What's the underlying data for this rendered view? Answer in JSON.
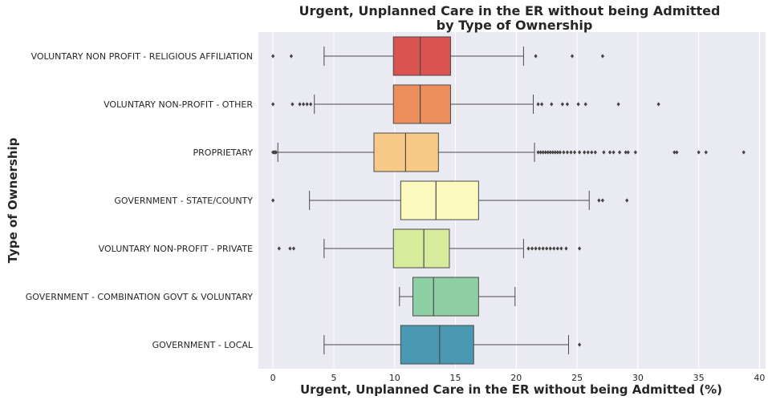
{
  "chart_data": {
    "type": "box",
    "orientation": "horizontal",
    "title_lines": [
      "Urgent, Unplanned Care in the ER without being Admitted",
      "by Type of Ownership"
    ],
    "xlabel": "Urgent, Unplanned Care in the ER without being Admitted (%)",
    "ylabel": "Type of Ownership",
    "xlim": [
      -1.2,
      40.5
    ],
    "xticks": [
      0,
      5,
      10,
      15,
      20,
      25,
      30,
      35,
      40
    ],
    "grid": true,
    "categories": [
      {
        "name": "VOLUNTARY NON PROFIT - RELIGIOUS AFFILIATION",
        "color": "#d9534f",
        "whisker_low": 4.2,
        "q1": 9.9,
        "median": 12.1,
        "q3": 14.6,
        "whisker_high": 20.6,
        "outliers": [
          0.0,
          1.5,
          21.6,
          24.6,
          27.1
        ]
      },
      {
        "name": "VOLUNTARY NON-PROFIT - OTHER",
        "color": "#ec8d5c",
        "whisker_low": 3.4,
        "q1": 9.9,
        "median": 12.1,
        "q3": 14.6,
        "whisker_high": 21.4,
        "outliers": [
          0.0,
          1.6,
          2.2,
          2.5,
          2.8,
          3.1,
          21.8,
          22.1,
          22.9,
          23.8,
          24.2,
          25.1,
          25.7,
          28.4,
          31.7
        ]
      },
      {
        "name": "PROPRIETARY",
        "color": "#f6c987",
        "whisker_low": 0.4,
        "q1": 8.3,
        "median": 10.9,
        "q3": 13.6,
        "whisker_high": 21.5,
        "outliers": [
          0.0,
          0.1,
          0.2,
          0.25,
          21.8,
          22.0,
          22.2,
          22.4,
          22.6,
          22.8,
          23.0,
          23.2,
          23.4,
          23.6,
          23.9,
          24.2,
          24.5,
          24.8,
          25.2,
          25.6,
          25.9,
          26.2,
          26.5,
          27.2,
          27.7,
          28.0,
          28.5,
          29.0,
          29.2,
          29.8,
          33.0,
          33.2,
          35.0,
          35.6,
          38.7
        ]
      },
      {
        "name": "GOVERNMENT - STATE/COUNTY",
        "color": "#fbfabe",
        "whisker_low": 3.0,
        "q1": 10.5,
        "median": 13.4,
        "q3": 16.9,
        "whisker_high": 26.0,
        "outliers": [
          0.0,
          26.8,
          27.1,
          29.1
        ]
      },
      {
        "name": "VOLUNTARY NON-PROFIT - PRIVATE",
        "color": "#d7eb9c",
        "whisker_low": 4.2,
        "q1": 9.9,
        "median": 12.4,
        "q3": 14.5,
        "whisker_high": 20.6,
        "outliers": [
          0.5,
          1.4,
          1.7,
          21.0,
          21.3,
          21.6,
          21.9,
          22.2,
          22.5,
          22.8,
          23.1,
          23.4,
          23.7,
          24.1,
          25.2
        ]
      },
      {
        "name": "GOVERNMENT - COMBINATION GOVT & VOLUNTARY",
        "color": "#8fcfa4",
        "whisker_low": 10.4,
        "q1": 11.5,
        "median": 13.2,
        "q3": 16.9,
        "whisker_high": 19.9,
        "outliers": []
      },
      {
        "name": "GOVERNMENT - LOCAL",
        "color": "#4b98b2",
        "whisker_low": 4.2,
        "q1": 10.5,
        "median": 13.7,
        "q3": 16.5,
        "whisker_high": 24.3,
        "outliers": [
          25.2
        ]
      }
    ]
  },
  "colors": {
    "plot_background": "#eaeaf2",
    "grid": "#ffffff",
    "box_edge": "#4a4a4a",
    "text": "#262626"
  }
}
